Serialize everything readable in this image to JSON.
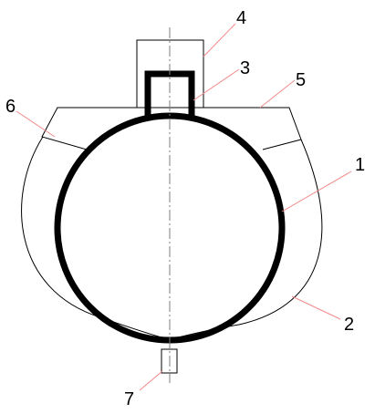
{
  "diagram": {
    "callouts": {
      "one": "1",
      "two": "2",
      "three": "3",
      "four": "4",
      "five": "5",
      "six": "6",
      "seven": "7"
    },
    "colors": {
      "outline": "#000000",
      "leader": "#f28a8a",
      "axis": "#7f7f7f",
      "background": "#ffffff"
    }
  }
}
